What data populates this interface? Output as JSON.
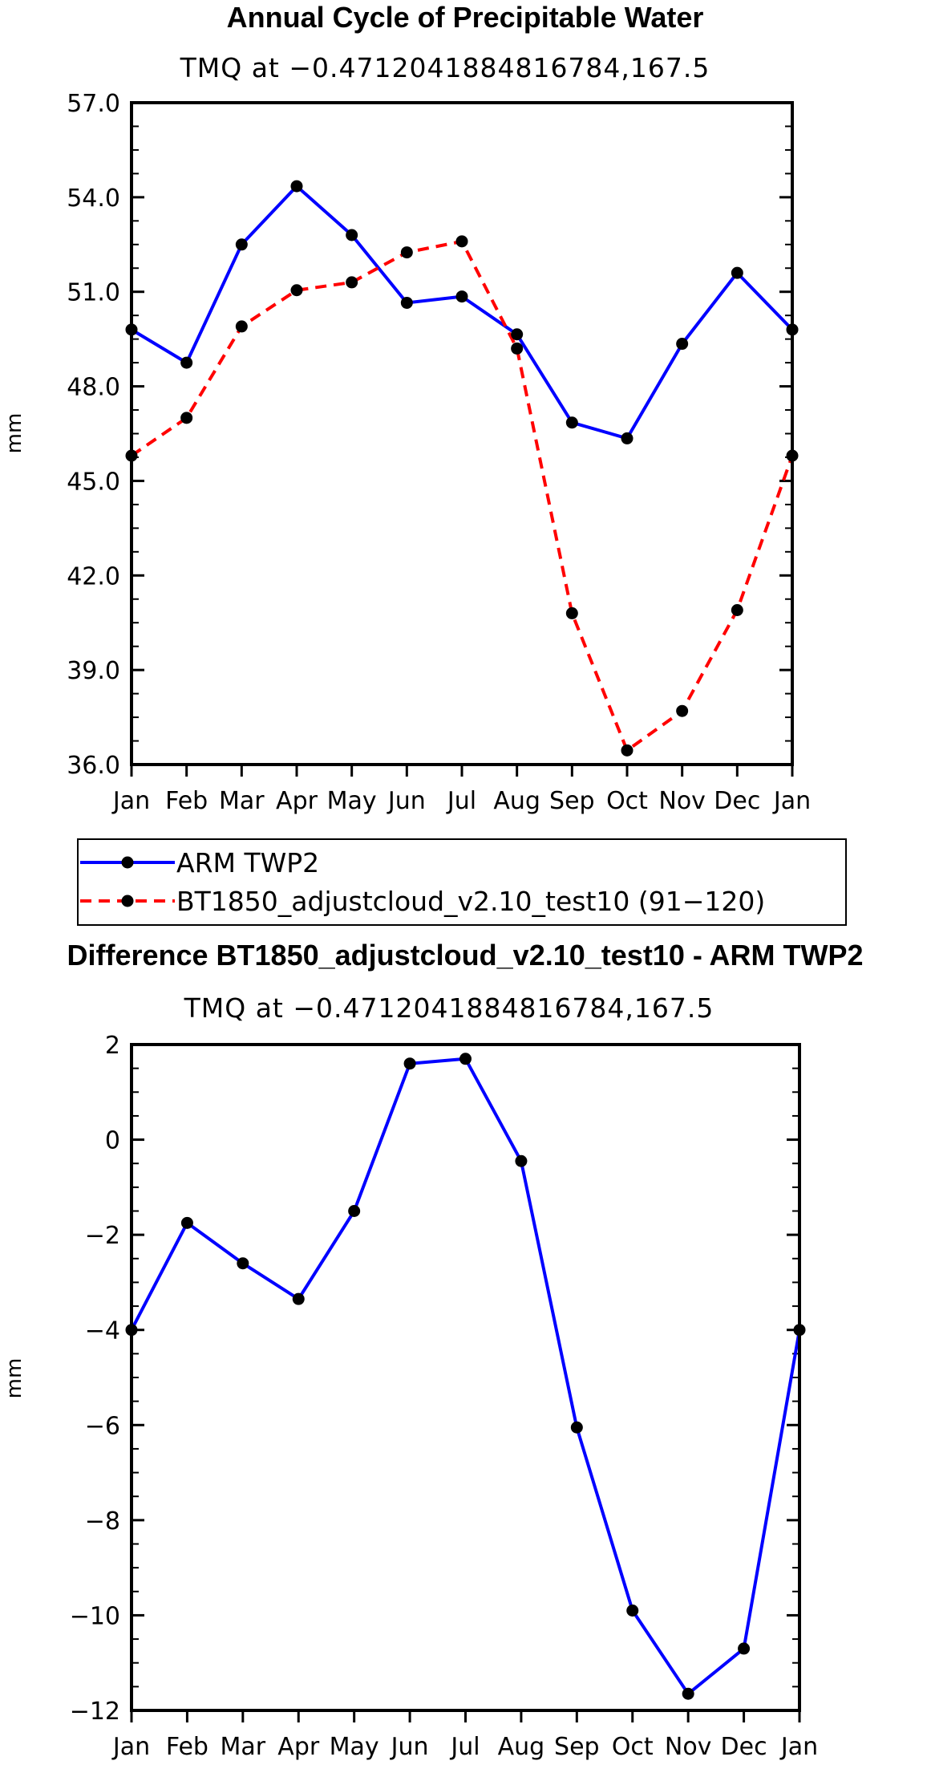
{
  "chart_data": [
    {
      "type": "line",
      "title": "Annual Cycle of Precipitable Water",
      "subtitle": "TMQ at −0.4712041884816784,167.5",
      "xlabel": "",
      "ylabel": "mm",
      "categories": [
        "Jan",
        "Feb",
        "Mar",
        "Apr",
        "May",
        "Jun",
        "Jul",
        "Aug",
        "Sep",
        "Oct",
        "Nov",
        "Dec",
        "Jan"
      ],
      "ylim": [
        36.0,
        57.0
      ],
      "yticks": [
        36.0,
        39.0,
        42.0,
        45.0,
        48.0,
        51.0,
        54.0,
        57.0
      ],
      "ytick_labels": [
        "36.0",
        "39.0",
        "42.0",
        "45.0",
        "48.0",
        "51.0",
        "54.0",
        "57.0"
      ],
      "series": [
        {
          "name": "ARM  TWP2",
          "color": "#0000ff",
          "dash": "solid",
          "values": [
            49.8,
            48.75,
            52.5,
            54.35,
            52.8,
            50.65,
            50.85,
            49.65,
            46.85,
            46.35,
            49.35,
            51.6,
            49.8
          ]
        },
        {
          "name": "BT1850_adjustcloud_v2.10_test10 (91−120)",
          "color": "#ff0000",
          "dash": "dashed",
          "values": [
            45.8,
            47.0,
            49.9,
            51.05,
            51.3,
            52.25,
            52.6,
            49.2,
            40.8,
            36.45,
            37.7,
            40.9,
            45.8
          ]
        }
      ],
      "legend": "below"
    },
    {
      "type": "line",
      "title": "Difference BT1850_adjustcloud_v2.10_test10 - ARM TWP2",
      "subtitle": "TMQ at −0.4712041884816784,167.5",
      "xlabel": "",
      "ylabel": "mm",
      "categories": [
        "Jan",
        "Feb",
        "Mar",
        "Apr",
        "May",
        "Jun",
        "Jul",
        "Aug",
        "Sep",
        "Oct",
        "Nov",
        "Dec",
        "Jan"
      ],
      "ylim": [
        -12,
        2
      ],
      "yticks": [
        -12,
        -10,
        -8,
        -6,
        -4,
        -2,
        0,
        2
      ],
      "ytick_labels": [
        "−12",
        "−10",
        "−8",
        "−6",
        "−4",
        "−2",
        "0",
        "2"
      ],
      "series": [
        {
          "name": "Difference",
          "color": "#0000ff",
          "dash": "solid",
          "values": [
            -4.0,
            -1.75,
            -2.6,
            -3.35,
            -1.5,
            1.6,
            1.7,
            -0.45,
            -6.05,
            -9.9,
            -11.65,
            -10.7,
            -4.0
          ]
        }
      ]
    }
  ]
}
